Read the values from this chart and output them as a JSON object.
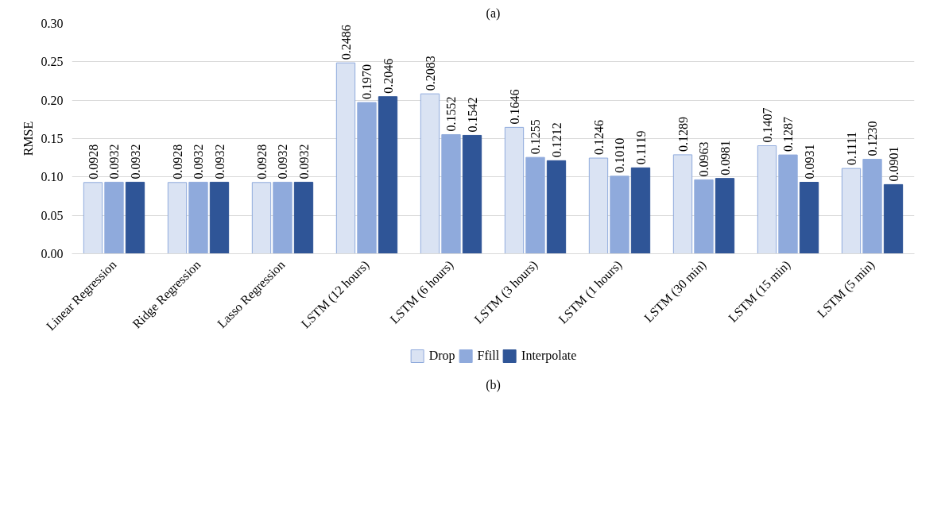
{
  "chart_data": {
    "type": "bar",
    "title": "(a)",
    "ylabel": "RMSE",
    "categories": [
      "Linear Regression",
      "Ridge Regression",
      "Lasso Regression",
      "LSTM (12 hours)",
      "LSTM (6 hours)",
      "LSTM (3 hours)",
      "LSTM (1 hours)",
      "LSTM (30 min)",
      "LSTM (15 min)",
      "LSTM (5 min)"
    ],
    "series": [
      {
        "name": "Drop",
        "color": "#dae3f3",
        "values": [
          0.0928,
          0.0928,
          0.0928,
          0.2486,
          0.2083,
          0.1646,
          0.1246,
          0.1289,
          0.1407,
          0.1111
        ],
        "value_labels": [
          "0.0928",
          "0.0928",
          "0.0928",
          "0.2486",
          "0.2083",
          "0.1646",
          "0.1246",
          "0.1289",
          "0.1407",
          "0.1111"
        ]
      },
      {
        "name": "Ffill",
        "color": "#8faadc",
        "values": [
          0.0932,
          0.0932,
          0.0932,
          0.197,
          0.1552,
          0.1255,
          0.101,
          0.0963,
          0.1287,
          0.123
        ],
        "value_labels": [
          "0.0932",
          "0.0932",
          "0.0932",
          "0.1970",
          "0.1552",
          "0.1255",
          "0.1010",
          "0.0963",
          "0.1287",
          "0.1230"
        ]
      },
      {
        "name": "Interpolate",
        "color": "#2f5597",
        "values": [
          0.0932,
          0.0932,
          0.0932,
          0.2046,
          0.1542,
          0.1212,
          0.1119,
          0.0981,
          0.0931,
          0.0901
        ],
        "value_labels": [
          "0.0932",
          "0.0932",
          "0.0932",
          "0.2046",
          "0.1542",
          "0.1212",
          "0.1119",
          "0.0981",
          "0.0931",
          "0.0901"
        ]
      }
    ],
    "ylim": [
      0,
      0.3
    ],
    "yticks": [
      {
        "value": 0,
        "label": "0.00"
      },
      {
        "value": 0.05,
        "label": "0.05"
      },
      {
        "value": 0.1,
        "label": "0.10"
      },
      {
        "value": 0.15,
        "label": "0.15"
      },
      {
        "value": 0.2,
        "label": "0.20"
      },
      {
        "value": 0.25,
        "label": "0.25"
      },
      {
        "value": 0.3,
        "label": "0.30"
      }
    ],
    "grid": "y",
    "legend": "bottom",
    "annotations": [
      "(b)"
    ]
  }
}
